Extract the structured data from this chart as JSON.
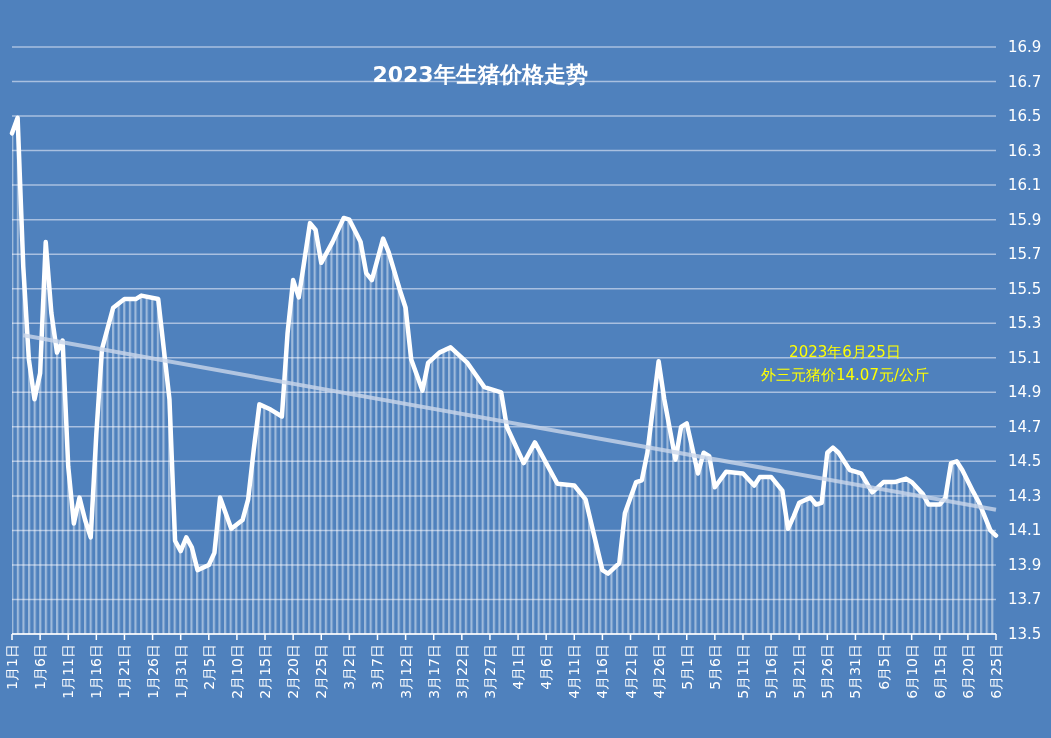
{
  "chart_data": {
    "type": "area",
    "title": "2023年生猪价格走势",
    "annotations": [
      "2023年6月25日",
      "外三元猪价14.07元/公斤"
    ],
    "xlim": [
      "--01-01",
      "--06-25"
    ],
    "xticks": [
      {
        "value": "--01-01",
        "label": "1月1日"
      },
      {
        "value": "--01-06",
        "label": "1月6日"
      },
      {
        "value": "--01-11",
        "label": "1月11日"
      },
      {
        "value": "--01-16",
        "label": "1月16日"
      },
      {
        "value": "--01-21",
        "label": "1月21日"
      },
      {
        "value": "--01-26",
        "label": "1月26日"
      },
      {
        "value": "--01-31",
        "label": "1月31日"
      },
      {
        "value": "--02-05",
        "label": "2月5日"
      },
      {
        "value": "--02-10",
        "label": "2月10日"
      },
      {
        "value": "--02-15",
        "label": "2月15日"
      },
      {
        "value": "--02-20",
        "label": "2月20日"
      },
      {
        "value": "--02-25",
        "label": "2月25日"
      },
      {
        "value": "--03-02",
        "label": "3月2日"
      },
      {
        "value": "--03-07",
        "label": "3月7日"
      },
      {
        "value": "--03-12",
        "label": "3月12日"
      },
      {
        "value": "--03-17",
        "label": "3月17日"
      },
      {
        "value": "--03-22",
        "label": "3月22日"
      },
      {
        "value": "--03-27",
        "label": "3月27日"
      },
      {
        "value": "--04-01",
        "label": "4月1日"
      },
      {
        "value": "--04-06",
        "label": "4月6日"
      },
      {
        "value": "--04-11",
        "label": "4月11日"
      },
      {
        "value": "--04-16",
        "label": "4月16日"
      },
      {
        "value": "--04-21",
        "label": "4月21日"
      },
      {
        "value": "--04-26",
        "label": "4月26日"
      },
      {
        "value": "--05-01",
        "label": "5月1日"
      },
      {
        "value": "--05-06",
        "label": "5月6日"
      },
      {
        "value": "--05-11",
        "label": "5月11日"
      },
      {
        "value": "--05-16",
        "label": "5月16日"
      },
      {
        "value": "--05-21",
        "label": "5月21日"
      },
      {
        "value": "--05-26",
        "label": "5月26日"
      },
      {
        "value": "--05-31",
        "label": "5月31日"
      },
      {
        "value": "--06-05",
        "label": "6月5日"
      },
      {
        "value": "--06-10",
        "label": "6月10日"
      },
      {
        "value": "--06-15",
        "label": "6月15日"
      },
      {
        "value": "--06-20",
        "label": "6月20日"
      },
      {
        "value": "--06-25",
        "label": "6月25日"
      }
    ],
    "ylim": [
      13.5,
      16.9
    ],
    "yticks": [
      13.5,
      13.7,
      13.9,
      14.1,
      14.3,
      14.5,
      14.7,
      14.9,
      15.1,
      15.3,
      15.5,
      15.7,
      15.9,
      16.1,
      16.3,
      16.5,
      16.7,
      16.9
    ],
    "grid": "y",
    "series": [
      {
        "color": "#ffffff",
        "x": [
          "--01-01",
          "--01-02",
          "--01-03",
          "--01-04",
          "--01-05",
          "--01-06",
          "--01-07",
          "--01-08",
          "--01-09",
          "--01-10",
          "--01-11",
          "--01-12",
          "--01-13",
          "--01-14",
          "--01-15",
          "--01-16",
          "--01-17",
          "--01-19",
          "--01-21",
          "--01-23",
          "--01-24",
          "--01-27",
          "--01-29",
          "--01-30",
          "--01-31",
          "--02-01",
          "--02-02",
          "--02-03",
          "--02-05",
          "--02-06",
          "--02-07",
          "--02-09",
          "--02-11",
          "--02-12",
          "--02-13",
          "--02-14",
          "--02-16",
          "--02-18",
          "--02-19",
          "--02-20",
          "--02-21",
          "--02-23",
          "--02-24",
          "--02-25",
          "--02-27",
          "--03-01",
          "--03-02",
          "--03-04",
          "--03-05",
          "--03-06",
          "--03-08",
          "--03-09",
          "--03-11",
          "--03-12",
          "--03-13",
          "--03-15",
          "--03-16",
          "--03-18",
          "--03-20",
          "--03-23",
          "--03-26",
          "--03-29",
          "--03-30",
          "--04-02",
          "--04-04",
          "--04-08",
          "--04-11",
          "--04-13",
          "--04-16",
          "--04-17",
          "--04-19",
          "--04-20",
          "--04-22",
          "--04-23",
          "--04-24",
          "--04-26",
          "--04-27",
          "--04-29",
          "--04-30",
          "--05-01",
          "--05-03",
          "--05-04",
          "--05-05",
          "--05-06",
          "--05-08",
          "--05-11",
          "--05-13",
          "--05-14",
          "--05-16",
          "--05-18",
          "--05-19",
          "--05-20",
          "--05-21",
          "--05-23",
          "--05-24",
          "--05-25",
          "--05-26",
          "--05-27",
          "--05-28",
          "--05-30",
          "--06-01",
          "--06-03",
          "--06-05",
          "--06-07",
          "--06-09",
          "--06-10",
          "--06-12",
          "--06-13",
          "--06-15",
          "--06-16",
          "--06-17",
          "--06-18",
          "--06-19",
          "--06-21",
          "--06-22",
          "--06-24",
          "--06-25"
        ],
        "values": [
          16.4,
          16.49,
          15.63,
          15.09,
          14.86,
          15.01,
          15.77,
          15.36,
          15.13,
          15.2,
          14.47,
          14.14,
          14.29,
          14.16,
          14.06,
          14.66,
          15.15,
          15.39,
          15.44,
          15.44,
          15.46,
          15.44,
          14.86,
          14.04,
          13.98,
          14.06,
          14.0,
          13.87,
          13.9,
          13.97,
          14.29,
          14.11,
          14.16,
          14.28,
          14.57,
          14.83,
          14.8,
          14.76,
          15.24,
          15.55,
          15.45,
          15.88,
          15.84,
          15.65,
          15.77,
          15.91,
          15.9,
          15.77,
          15.59,
          15.55,
          15.79,
          15.71,
          15.49,
          15.39,
          15.09,
          14.91,
          15.07,
          15.13,
          15.16,
          15.07,
          14.93,
          14.9,
          14.7,
          14.49,
          14.61,
          14.37,
          14.36,
          14.28,
          13.87,
          13.85,
          13.91,
          14.2,
          14.38,
          14.39,
          14.55,
          15.08,
          14.86,
          14.51,
          14.7,
          14.72,
          14.43,
          14.55,
          14.53,
          14.35,
          14.44,
          14.43,
          14.36,
          14.41,
          14.41,
          14.33,
          14.11,
          14.18,
          14.26,
          14.29,
          14.25,
          14.26,
          14.55,
          14.58,
          14.55,
          14.45,
          14.43,
          14.32,
          14.38,
          14.38,
          14.4,
          14.38,
          14.31,
          14.25,
          14.25,
          14.29,
          14.49,
          14.5,
          14.45,
          14.32,
          14.26,
          14.1,
          14.07
        ]
      },
      {
        "type": "line",
        "color": "#c9d6ea",
        "x": [
          "--01-03",
          "--06-25"
        ],
        "values": [
          15.23,
          14.22
        ]
      }
    ]
  }
}
